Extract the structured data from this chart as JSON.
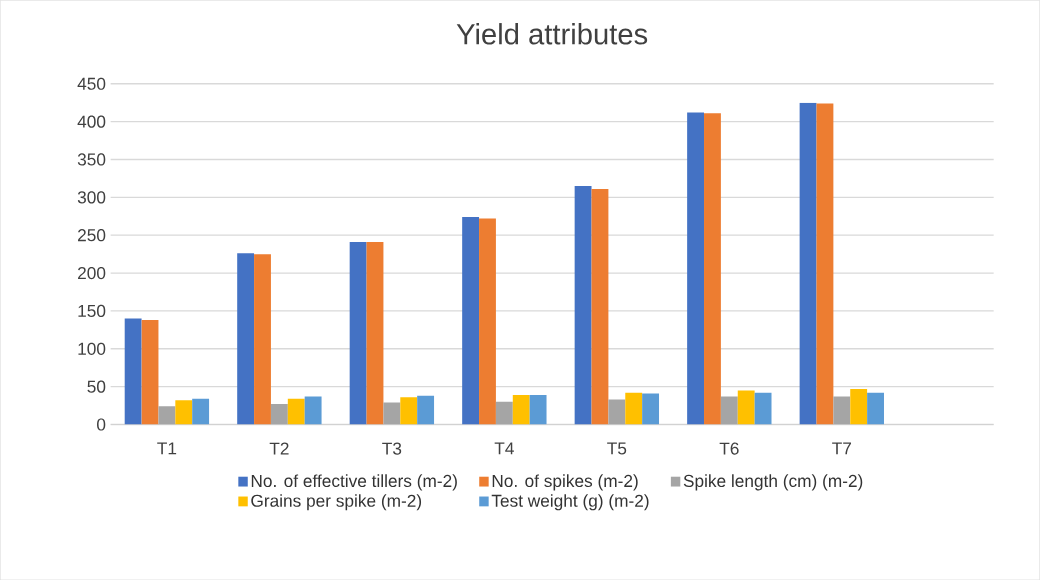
{
  "chart_data": {
    "type": "bar",
    "title": "Yield attributes",
    "categories": [
      "T1",
      "T2",
      "T3",
      "T4",
      "T5",
      "T6",
      "T7"
    ],
    "series": [
      {
        "name": "No. of effective tillers (m-2)",
        "color": "#4472c4",
        "values": [
          140,
          226,
          241,
          274,
          315,
          412,
          425
        ]
      },
      {
        "name": "No. of spikes (m-2)",
        "color": "#ed7d31",
        "values": [
          138,
          225,
          241,
          272,
          311,
          411,
          424
        ]
      },
      {
        "name": "Spike length (cm) (m-2)",
        "color": "#a5a5a5",
        "values": [
          24,
          27,
          29,
          30,
          33,
          37,
          37
        ]
      },
      {
        "name": "Grains per spike  (m-2)",
        "color": "#ffc000",
        "values": [
          32,
          34,
          36,
          39,
          42,
          45,
          47
        ]
      },
      {
        "name": "Test weight (g)  (m-2)",
        "color": "#5b9bd5",
        "values": [
          34,
          37,
          38,
          39,
          41,
          42,
          42
        ]
      }
    ],
    "ylim": [
      0,
      450
    ],
    "yticks": [
      0,
      50,
      100,
      150,
      200,
      250,
      300,
      350,
      400,
      450
    ],
    "grid": "y",
    "legend": "bottom"
  }
}
